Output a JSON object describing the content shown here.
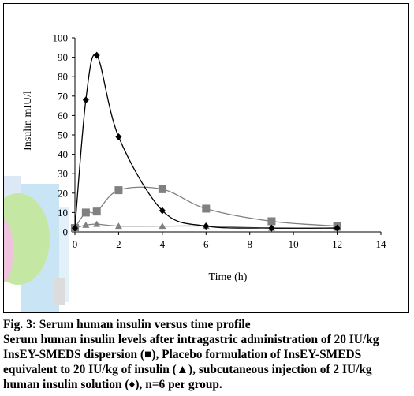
{
  "chart_data": {
    "type": "line",
    "xlabel": "Time (h)",
    "ylabel": "Insulin mIU/l",
    "xlim": [
      0,
      14
    ],
    "ylim": [
      0,
      100
    ],
    "x_ticks": [
      "0",
      "2",
      "4",
      "6",
      "8",
      "10",
      "12",
      "14"
    ],
    "y_ticks": [
      "0",
      "10",
      "20",
      "30",
      "40",
      "50",
      "60",
      "70",
      "80",
      "90",
      "100"
    ],
    "grid": false,
    "legend": "none",
    "series": [
      {
        "marker": "diamond",
        "color": "#000000",
        "x": [
          0,
          0.5,
          1,
          2,
          4,
          6,
          9,
          12
        ],
        "y": [
          2,
          68,
          91,
          49,
          11,
          3,
          2,
          2
        ]
      },
      {
        "marker": "square",
        "color": "#808080",
        "x": [
          0,
          0.5,
          1,
          2,
          4,
          6,
          9,
          12
        ],
        "y": [
          2,
          10,
          10.5,
          21.5,
          22,
          12,
          5.5,
          3
        ]
      },
      {
        "marker": "triangle",
        "color": "#808080",
        "x": [
          0,
          0.5,
          1,
          2,
          4,
          6,
          9,
          12
        ],
        "y": [
          2,
          3.5,
          4,
          3,
          3,
          3,
          2,
          2
        ]
      }
    ]
  },
  "caption": {
    "figure_label": "Fig. 3: Serum human insulin versus time profile",
    "text": "Serum human insulin levels after intragastric administration of 20 IU/kg InsEY-SMEDS dispersion (■), Placebo formulation of InsEY-SMEDS equivalent to 20 IU/kg of insulin (▲), subcutaneous injection of 2 IU/kg human insulin solution (♦), n=6 per group."
  }
}
